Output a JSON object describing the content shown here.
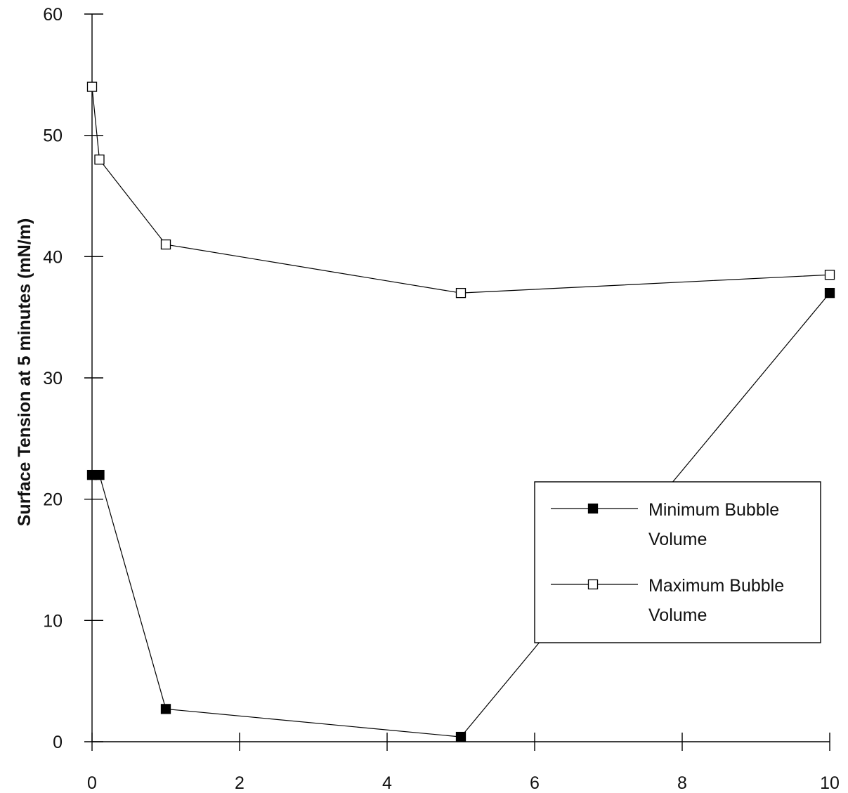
{
  "chart_data": {
    "type": "line",
    "title": "",
    "xlabel": "",
    "ylabel": "Surface Tension at 5 minutes (mN/m)",
    "xlim": [
      0,
      10
    ],
    "ylim": [
      0,
      60
    ],
    "xticks": [
      "0",
      "2",
      "4",
      "6",
      "8",
      "10"
    ],
    "yticks": [
      "0",
      "10",
      "20",
      "30",
      "40",
      "50",
      "60"
    ],
    "grid": false,
    "legend_position": "right-middle",
    "series": [
      {
        "name": "Minimum Bubble Volume",
        "legend_lines": [
          "Minimum Bubble",
          "Volume"
        ],
        "marker": "filled-square",
        "color": "#000000",
        "x": [
          0,
          0.1,
          1,
          5,
          10
        ],
        "y": [
          22,
          22,
          2.7,
          0.4,
          37
        ]
      },
      {
        "name": "Maximum Bubble Volume",
        "legend_lines": [
          "Maximum Bubble",
          "Volume"
        ],
        "marker": "open-square",
        "color": "#000000",
        "x": [
          0,
          0.1,
          1,
          5,
          10
        ],
        "y": [
          54,
          48,
          41,
          37,
          38.5
        ]
      }
    ]
  }
}
